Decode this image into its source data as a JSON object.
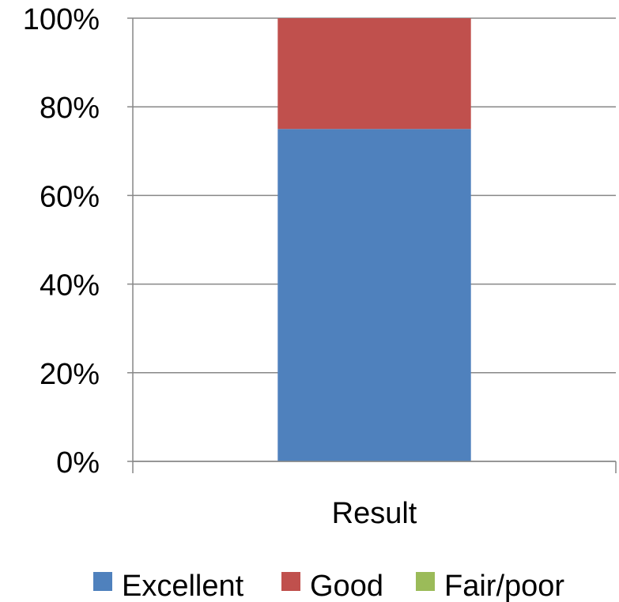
{
  "chart_data": {
    "type": "bar",
    "stacked": true,
    "percent_stacked": true,
    "categories": [
      "Result"
    ],
    "series": [
      {
        "name": "Excellent",
        "values": [
          75
        ],
        "color": "#4F81BD"
      },
      {
        "name": "Good",
        "values": [
          25
        ],
        "color": "#C0504D"
      },
      {
        "name": "Fair/poor",
        "values": [
          0
        ],
        "color": "#9BBB59"
      }
    ],
    "ylim": [
      0,
      100
    ],
    "yticks": [
      0,
      20,
      40,
      60,
      80,
      100
    ],
    "ytick_labels": [
      "0%",
      "20%",
      "40%",
      "60%",
      "80%",
      "100%"
    ],
    "grid": true,
    "legend_position": "bottom",
    "title": "",
    "xlabel": "",
    "ylabel": ""
  }
}
